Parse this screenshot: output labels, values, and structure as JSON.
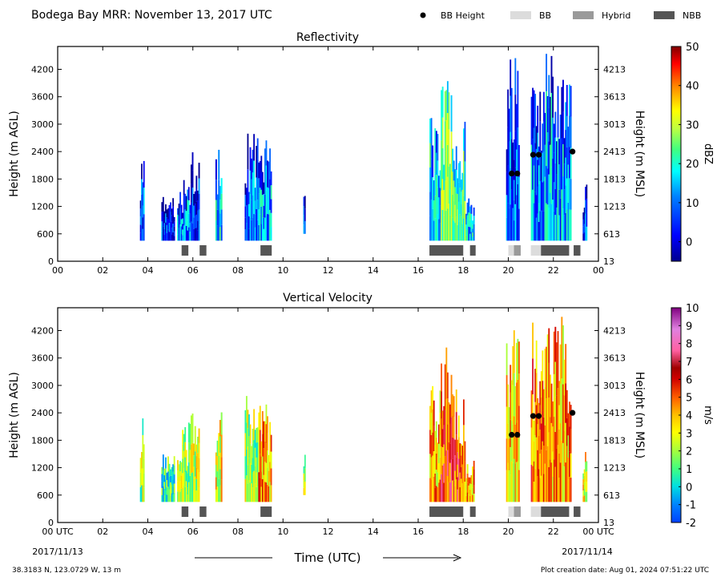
{
  "header": {
    "title": "Bodega Bay MRR:  November 13, 2017 UTC",
    "legend": [
      {
        "label": "BB Height",
        "kind": "dot",
        "color": "#000000"
      },
      {
        "label": "BB",
        "kind": "box",
        "color": "#dcdcdc"
      },
      {
        "label": "Hybrid",
        "kind": "box",
        "color": "#9a9a9a"
      },
      {
        "label": "NBB",
        "kind": "box",
        "color": "#555555"
      }
    ]
  },
  "footer": {
    "location": "38.3183 N, 123.0729 W, 13 m",
    "creation": "Plot creation date: Aug 01, 2024 07:51:22 UTC",
    "xlabel": "Time (UTC)",
    "start_date": "2017/11/13",
    "end_date": "2017/11/14"
  },
  "colors": {
    "frame": "#000000",
    "nbb": "#555555",
    "hybrid": "#9a9a9a",
    "bb": "#dcdcdc"
  },
  "chart_data": [
    {
      "type": "heatmap",
      "title": "Reflectivity",
      "ylabel": "Height (m AGL)",
      "ylabel_right": "Height (m MSL)",
      "xlim": [
        0,
        24
      ],
      "ylim": [
        0,
        4700
      ],
      "x_ticks": [
        "00",
        "02",
        "04",
        "06",
        "08",
        "10",
        "12",
        "14",
        "16",
        "18",
        "20",
        "22",
        "00"
      ],
      "y_ticks": [
        0,
        600,
        1200,
        1800,
        2400,
        3000,
        3600,
        4200
      ],
      "y_ticks_right": [
        "13",
        "613",
        "1213",
        "1813",
        "2413",
        "3013",
        "3613",
        "4213"
      ],
      "colorbar": {
        "label": "dBZ",
        "range": [
          -5,
          50
        ],
        "ticks": [
          "50",
          "40",
          "30",
          "20",
          "10",
          "0"
        ],
        "tick_values": [
          50,
          40,
          30,
          20,
          10,
          0
        ]
      },
      "echo_columns": [
        {
          "start": 3.65,
          "end": 3.85,
          "bottom": 450,
          "top": 2400,
          "level": 5
        },
        {
          "start": 4.6,
          "end": 5.2,
          "bottom": 450,
          "top": 1500,
          "level": 3
        },
        {
          "start": 5.3,
          "end": 5.9,
          "bottom": 450,
          "top": 1800,
          "level": 8
        },
        {
          "start": 5.9,
          "end": 6.3,
          "bottom": 450,
          "top": 2400,
          "level": 2
        },
        {
          "start": 7.0,
          "end": 7.3,
          "bottom": 450,
          "top": 2500,
          "level": 12
        },
        {
          "start": 8.3,
          "end": 8.9,
          "bottom": 450,
          "top": 2800,
          "level": 6
        },
        {
          "start": 8.9,
          "end": 9.5,
          "bottom": 450,
          "top": 2700,
          "level": 10
        },
        {
          "start": 10.9,
          "end": 11.0,
          "bottom": 600,
          "top": 1500,
          "level": 4
        },
        {
          "start": 16.5,
          "end": 17.0,
          "bottom": 450,
          "top": 3200,
          "level": 14
        },
        {
          "start": 17.0,
          "end": 17.5,
          "bottom": 450,
          "top": 4000,
          "level": 22
        },
        {
          "start": 17.5,
          "end": 18.1,
          "bottom": 450,
          "top": 3100,
          "level": 18
        },
        {
          "start": 18.1,
          "end": 18.5,
          "bottom": 450,
          "top": 1400,
          "level": 12
        },
        {
          "start": 19.9,
          "end": 20.5,
          "bottom": 450,
          "top": 4650,
          "level": 6
        },
        {
          "start": 21.0,
          "end": 21.6,
          "bottom": 450,
          "top": 4400,
          "level": 8
        },
        {
          "start": 21.6,
          "end": 22.8,
          "bottom": 450,
          "top": 4600,
          "level": 10
        },
        {
          "start": 23.3,
          "end": 23.5,
          "bottom": 450,
          "top": 1800,
          "level": 5
        }
      ],
      "bb_height": [
        {
          "x": 20.15,
          "y": 1920
        },
        {
          "x": 20.4,
          "y": 1920
        },
        {
          "x": 21.1,
          "y": 2330
        },
        {
          "x": 21.35,
          "y": 2330
        },
        {
          "x": 22.85,
          "y": 2400
        }
      ],
      "bb_type": [
        {
          "start": 5.5,
          "end": 5.8,
          "type": "NBB"
        },
        {
          "start": 6.3,
          "end": 6.6,
          "type": "NBB"
        },
        {
          "start": 9.0,
          "end": 9.5,
          "type": "NBB"
        },
        {
          "start": 16.5,
          "end": 18.0,
          "type": "NBB"
        },
        {
          "start": 18.3,
          "end": 18.55,
          "type": "NBB"
        },
        {
          "start": 20.0,
          "end": 20.25,
          "type": "BB"
        },
        {
          "start": 20.25,
          "end": 20.55,
          "type": "Hybrid"
        },
        {
          "start": 21.0,
          "end": 21.45,
          "type": "BB"
        },
        {
          "start": 21.45,
          "end": 22.7,
          "type": "NBB"
        },
        {
          "start": 22.9,
          "end": 23.2,
          "type": "NBB"
        }
      ]
    },
    {
      "type": "heatmap",
      "title": "Vertical Velocity",
      "ylabel": "Height (m AGL)",
      "ylabel_right": "Height (m MSL)",
      "xlim": [
        0,
        24
      ],
      "ylim": [
        0,
        4700
      ],
      "x_ticks": [
        "00 UTC",
        "02",
        "04",
        "06",
        "08",
        "10",
        "12",
        "14",
        "16",
        "18",
        "20",
        "22",
        "00 UTC"
      ],
      "y_ticks": [
        0,
        600,
        1200,
        1800,
        2400,
        3000,
        3600,
        4200
      ],
      "y_ticks_right": [
        "13",
        "613",
        "1213",
        "1813",
        "2413",
        "3013",
        "3613",
        "4213"
      ],
      "colorbar": {
        "label": "m/s",
        "range": [
          -2,
          10
        ],
        "ticks": [
          "10",
          "9",
          "8",
          "7",
          "6",
          "5",
          "4",
          "3",
          "2",
          "1",
          "0",
          "-1",
          "-2"
        ],
        "tick_values": [
          10,
          9,
          8,
          7,
          6,
          5,
          4,
          3,
          2,
          1,
          0,
          -1,
          -2
        ]
      },
      "echo_columns": [
        {
          "start": 3.65,
          "end": 3.85,
          "bottom": 450,
          "top": 2400,
          "level": 2
        },
        {
          "start": 4.6,
          "end": 5.2,
          "bottom": 450,
          "top": 1500,
          "level": 1
        },
        {
          "start": 5.3,
          "end": 5.9,
          "bottom": 450,
          "top": 2200,
          "level": 2
        },
        {
          "start": 5.9,
          "end": 6.3,
          "bottom": 450,
          "top": 2400,
          "level": 2.5
        },
        {
          "start": 7.0,
          "end": 7.3,
          "bottom": 450,
          "top": 2600,
          "level": 3
        },
        {
          "start": 8.3,
          "end": 8.9,
          "bottom": 450,
          "top": 2800,
          "level": 2
        },
        {
          "start": 8.9,
          "end": 9.5,
          "bottom": 450,
          "top": 2700,
          "level": 4
        },
        {
          "start": 10.9,
          "end": 11.0,
          "bottom": 600,
          "top": 1500,
          "level": 2
        },
        {
          "start": 16.5,
          "end": 17.0,
          "bottom": 450,
          "top": 3200,
          "level": 4
        },
        {
          "start": 17.0,
          "end": 17.5,
          "bottom": 450,
          "top": 4000,
          "level": 5.5
        },
        {
          "start": 17.5,
          "end": 18.1,
          "bottom": 450,
          "top": 3100,
          "level": 5
        },
        {
          "start": 18.1,
          "end": 18.5,
          "bottom": 450,
          "top": 1400,
          "level": 4
        },
        {
          "start": 19.9,
          "end": 20.5,
          "bottom": 450,
          "top": 4650,
          "level": 3.5
        },
        {
          "start": 21.0,
          "end": 21.6,
          "bottom": 450,
          "top": 4400,
          "level": 4.5
        },
        {
          "start": 21.6,
          "end": 22.8,
          "bottom": 450,
          "top": 4600,
          "level": 4
        },
        {
          "start": 23.3,
          "end": 23.5,
          "bottom": 450,
          "top": 1800,
          "level": 3
        }
      ],
      "bb_height": [
        {
          "x": 20.15,
          "y": 1920
        },
        {
          "x": 20.4,
          "y": 1920
        },
        {
          "x": 21.1,
          "y": 2330
        },
        {
          "x": 21.35,
          "y": 2330
        },
        {
          "x": 22.85,
          "y": 2400
        }
      ],
      "bb_type": [
        {
          "start": 5.5,
          "end": 5.8,
          "type": "NBB"
        },
        {
          "start": 6.3,
          "end": 6.6,
          "type": "NBB"
        },
        {
          "start": 9.0,
          "end": 9.5,
          "type": "NBB"
        },
        {
          "start": 16.5,
          "end": 18.0,
          "type": "NBB"
        },
        {
          "start": 18.3,
          "end": 18.55,
          "type": "NBB"
        },
        {
          "start": 20.0,
          "end": 20.25,
          "type": "BB"
        },
        {
          "start": 20.25,
          "end": 20.55,
          "type": "Hybrid"
        },
        {
          "start": 21.0,
          "end": 21.45,
          "type": "BB"
        },
        {
          "start": 21.45,
          "end": 22.7,
          "type": "NBB"
        },
        {
          "start": 22.9,
          "end": 23.2,
          "type": "NBB"
        }
      ]
    }
  ]
}
